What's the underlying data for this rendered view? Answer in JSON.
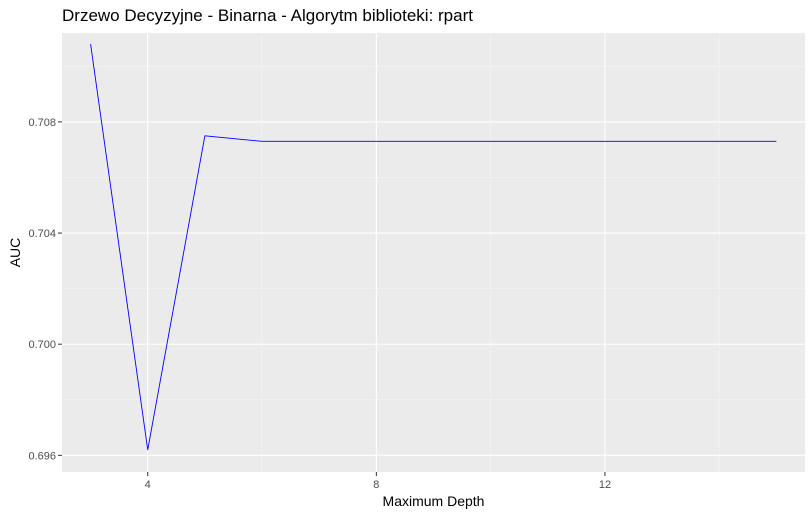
{
  "chart_data": {
    "type": "line",
    "title": "Drzewo Decyzyjne - Binarna - Algorytm biblioteki: rpart",
    "xlabel": "Maximum Depth",
    "ylabel": "AUC",
    "xlim": [
      2.5,
      15.5
    ],
    "ylim": [
      0.6954,
      0.7112
    ],
    "x_major_ticks": [
      4,
      8,
      12
    ],
    "x_minor_ticks": [
      6,
      10,
      14
    ],
    "y_major_ticks": [
      0.696,
      0.7,
      0.704,
      0.708
    ],
    "y_minor_ticks": [
      0.698,
      0.702,
      0.706,
      0.71
    ],
    "x_tick_labels": [
      "4",
      "8",
      "12"
    ],
    "y_tick_labels": [
      "0.696",
      "0.700",
      "0.704",
      "0.708"
    ],
    "grid": true,
    "series": [
      {
        "color": "#0000ff",
        "x": [
          3,
          4,
          5,
          6,
          7,
          8,
          9,
          10,
          11,
          12,
          13,
          14,
          15
        ],
        "y": [
          0.7108,
          0.6962,
          0.7075,
          0.7073,
          0.7073,
          0.7073,
          0.7073,
          0.7073,
          0.7073,
          0.7073,
          0.7073,
          0.7073,
          0.7073
        ]
      }
    ]
  },
  "colors": {
    "panel_background": "#ebebeb",
    "grid_major": "#ffffff",
    "grid_minor": "#f5f5f5",
    "line": "#0000ff"
  }
}
